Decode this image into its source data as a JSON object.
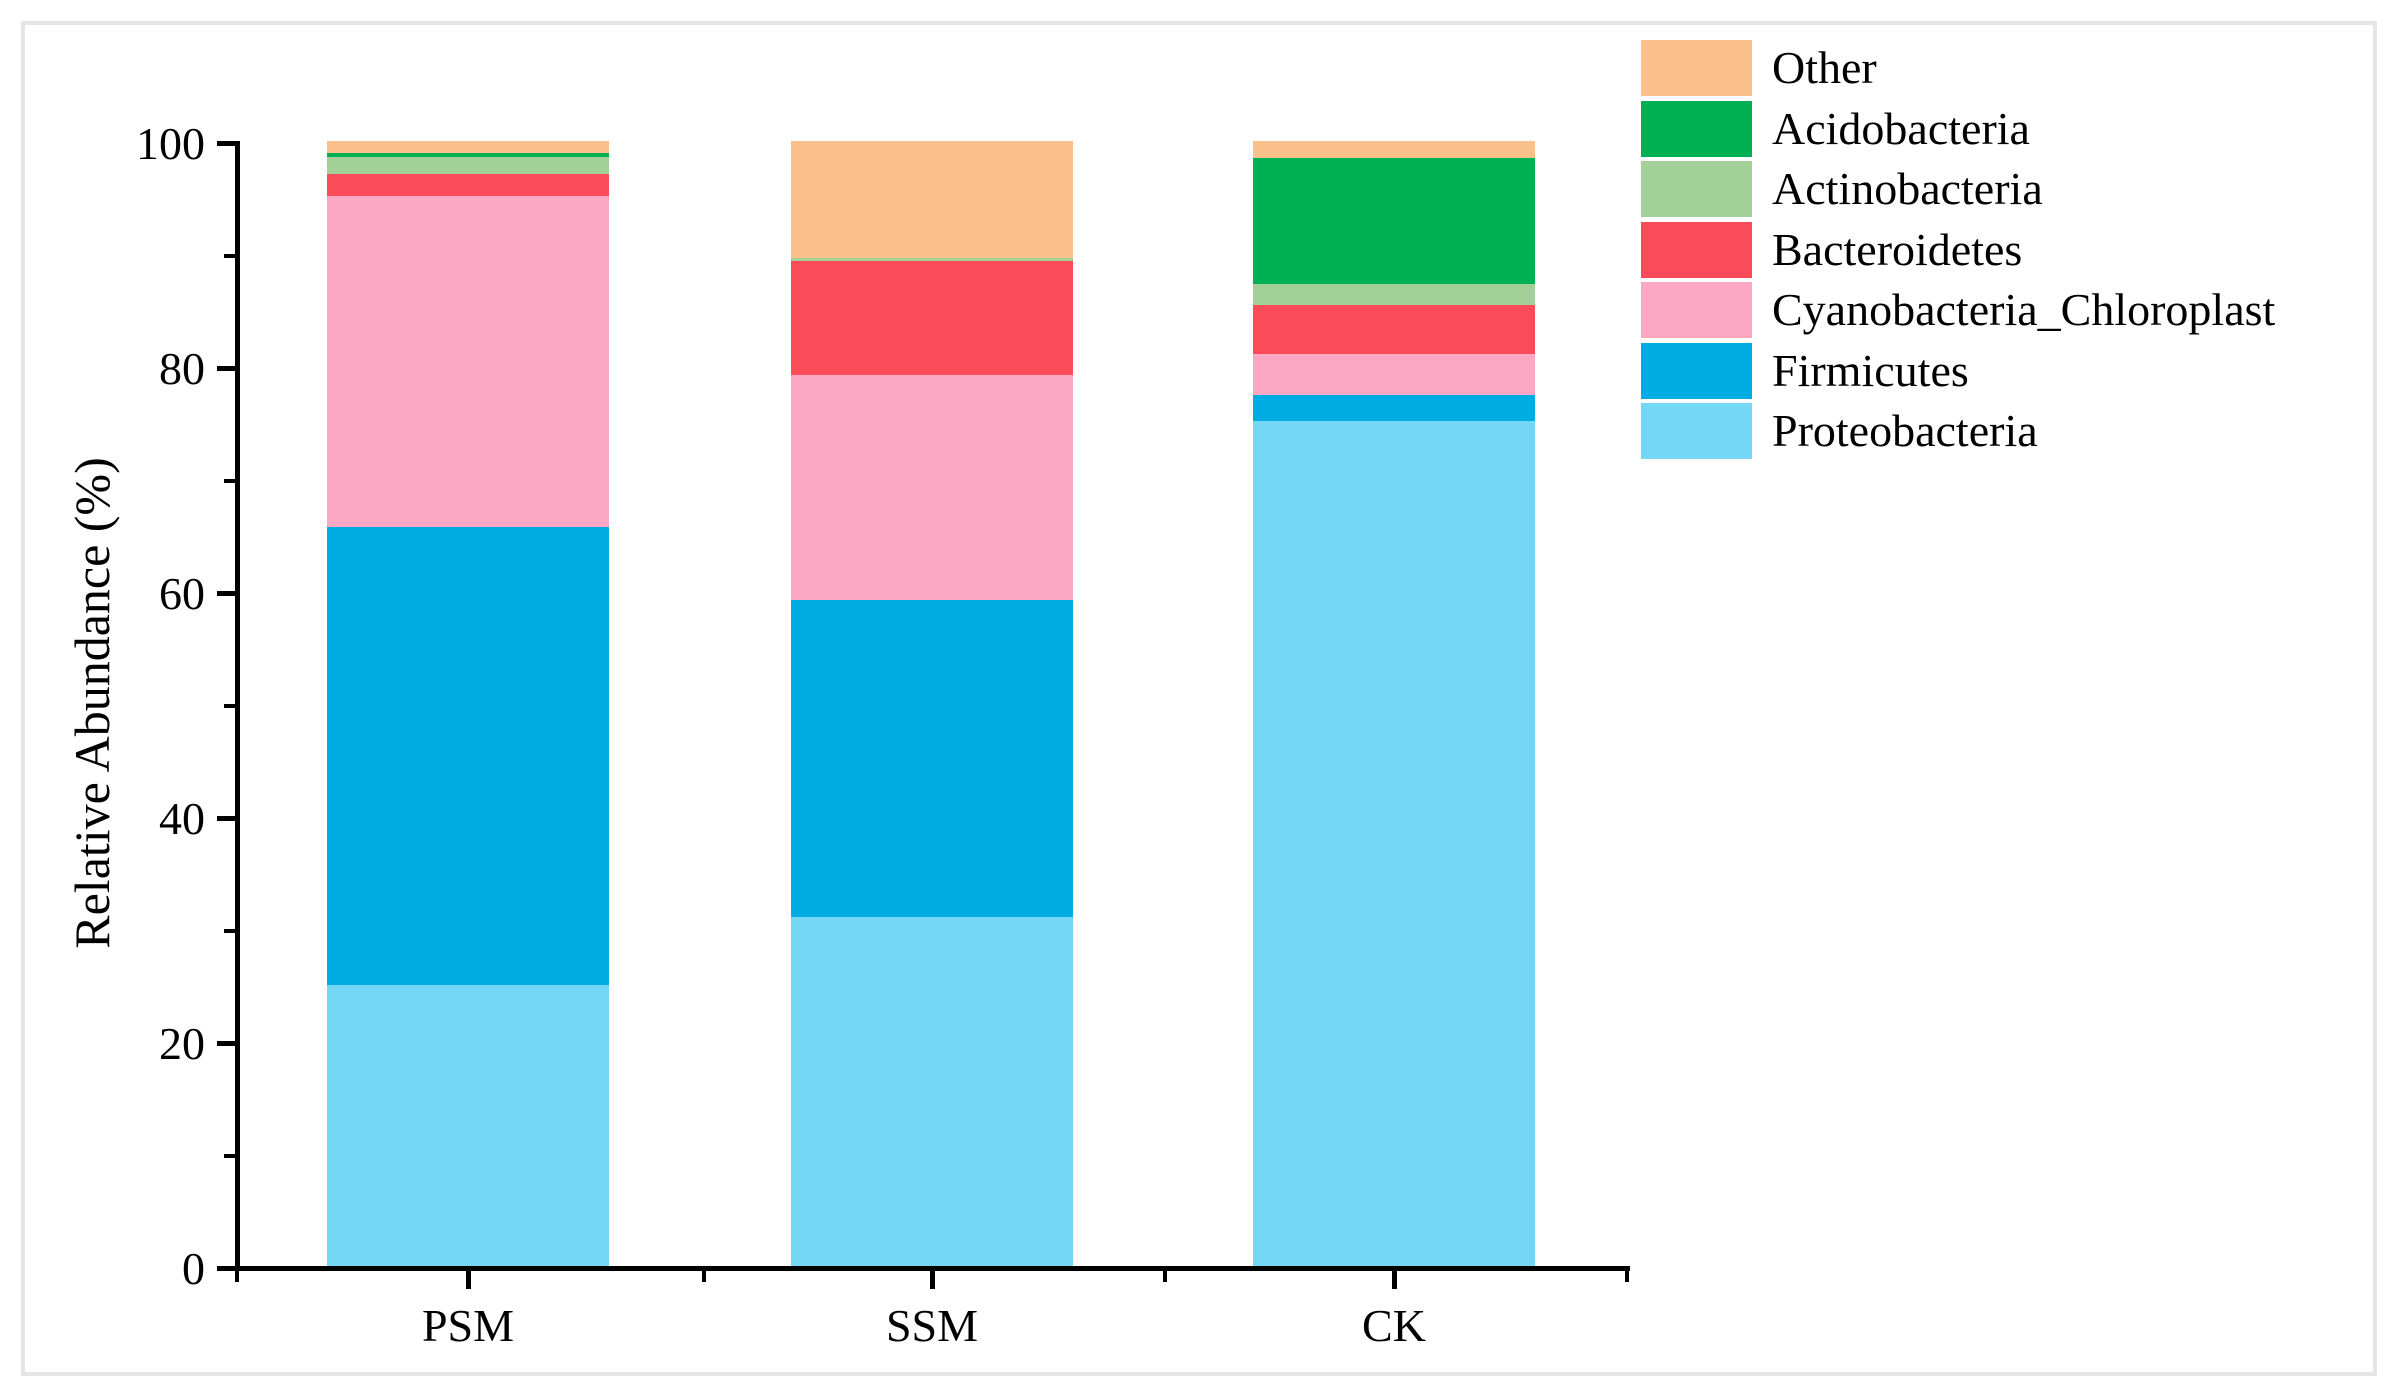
{
  "figure": {
    "border_color": "#e5e5e5",
    "background": "#ffffff"
  },
  "palette": {
    "Other": "#fbc18d",
    "Acidobacteria": "#00b052",
    "Actinobacteria": "#a3d098",
    "Bacteroidetes": "#fa4b58",
    "Cyanobacteria_Chloroplast": "#fca7c4",
    "Firmicutes": "#00ace4",
    "Proteobacteria": "#74d7f5"
  },
  "legend": {
    "items": [
      "Other",
      "Acidobacteria",
      "Actinobacteria",
      "Bacteroidetes",
      "Cyanobacteria_Chloroplast",
      "Firmicutes",
      "Proteobacteria"
    ]
  },
  "y_axis": {
    "title": "Relative Abundance (%)",
    "major_ticks": [
      0,
      20,
      40,
      60,
      80,
      100
    ],
    "minor_ticks": [
      10,
      30,
      50,
      70,
      90
    ],
    "range": [
      0,
      100
    ]
  },
  "x_axis": {
    "categories": [
      "PSM",
      "SSM",
      "CK"
    ]
  },
  "chart_data": {
    "type": "bar",
    "stacked": true,
    "title": "",
    "xlabel": "",
    "ylabel": "Relative Abundance (%)",
    "ylim": [
      0,
      100
    ],
    "grid": false,
    "legend_position": "top-right",
    "categories": [
      "PSM",
      "SSM",
      "CK"
    ],
    "stack_order_note": "series listed bottom-to-top of each stacked bar; values are percent",
    "series": [
      {
        "name": "Proteobacteria",
        "values": [
          25.0,
          31.0,
          75.1
        ]
      },
      {
        "name": "Firmicutes",
        "values": [
          40.7,
          28.2,
          2.3
        ]
      },
      {
        "name": "Cyanobacteria_Chloroplast",
        "values": [
          29.4,
          20.0,
          3.7
        ]
      },
      {
        "name": "Bacteroidetes",
        "values": [
          2.0,
          10.1,
          4.3
        ]
      },
      {
        "name": "Actinobacteria",
        "values": [
          1.5,
          0.3,
          1.9
        ]
      },
      {
        "name": "Acidobacteria",
        "values": [
          0.3,
          0.0,
          11.2
        ]
      },
      {
        "name": "Other",
        "values": [
          1.1,
          10.4,
          1.5
        ]
      }
    ]
  }
}
